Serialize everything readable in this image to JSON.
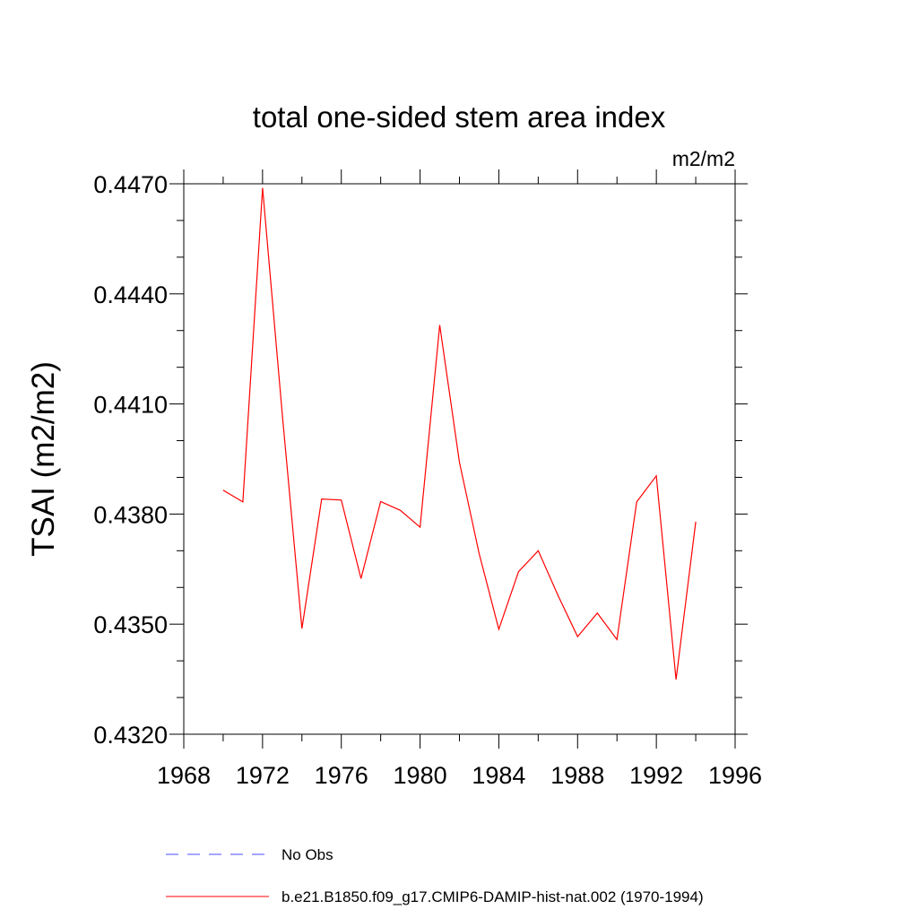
{
  "chart_data": {
    "type": "line",
    "title": "total one-sided stem area index",
    "units_label": "m2/m2",
    "ylabel": "TSAI  (m2/m2)",
    "xlabel": "",
    "xlim": [
      1968,
      1996
    ],
    "ylim": [
      0.432,
      0.447
    ],
    "x_ticks": [
      1968,
      1972,
      1976,
      1980,
      1984,
      1988,
      1992,
      1996
    ],
    "x_tick_labels": [
      "1968",
      "1972",
      "1976",
      "1980",
      "1984",
      "1988",
      "1992",
      "1996"
    ],
    "y_ticks": [
      0.432,
      0.435,
      0.438,
      0.441,
      0.444,
      0.447
    ],
    "y_tick_labels": [
      "0.4320",
      "0.4350",
      "0.4380",
      "0.4410",
      "0.4440",
      "0.4470"
    ],
    "x_minor_step": 2,
    "y_minor_step": 0.001,
    "grid": false,
    "legend_position": "bottom",
    "series": [
      {
        "name": "b.e21.B1850.f09_g17.CMIP6-DAMIP-hist-nat.002 (1970-1994)",
        "color": "#ff0000",
        "style": "solid",
        "x": [
          1970,
          1971,
          1972,
          1973,
          1974,
          1975,
          1976,
          1977,
          1978,
          1979,
          1980,
          1981,
          1982,
          1983,
          1984,
          1985,
          1986,
          1987,
          1988,
          1989,
          1990,
          1991,
          1992,
          1993,
          1994
        ],
        "values": [
          0.43865,
          0.43833,
          0.44689,
          0.44074,
          0.43488,
          0.43841,
          0.43838,
          0.43624,
          0.43834,
          0.4381,
          0.43764,
          0.44315,
          0.43941,
          0.43692,
          0.43486,
          0.43643,
          0.437,
          0.43579,
          0.43466,
          0.4353,
          0.43458,
          0.43833,
          0.43904,
          0.43349,
          0.43779
        ]
      },
      {
        "name": "No Obs",
        "color": "#4b4bff",
        "style": "dashed",
        "x": [],
        "values": []
      }
    ]
  }
}
